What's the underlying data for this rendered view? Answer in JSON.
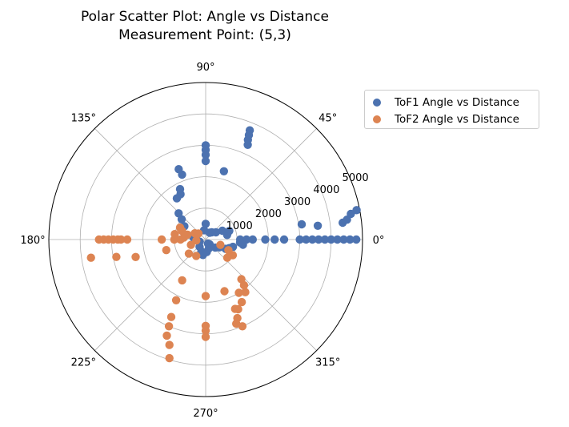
{
  "chart_data": {
    "type": "scatter",
    "projection": "polar",
    "title": "Polar Scatter Plot: Angle vs Distance",
    "subtitle": "Measurement Point: (5,3)",
    "r_ticks": [
      1000,
      2000,
      3000,
      4000,
      5000
    ],
    "r_tick_labels": [
      "1000",
      "2000",
      "3000",
      "4000",
      "5000"
    ],
    "r_max": 5000,
    "theta_ticks": [
      0,
      45,
      90,
      135,
      180,
      225,
      270,
      315
    ],
    "theta_tick_labels": [
      "0°",
      "45°",
      "90°",
      "135°",
      "180°",
      "225°",
      "270°",
      "315°"
    ],
    "theta_unit": "degrees",
    "grid": true,
    "legend_position": "outside-right",
    "series": [
      {
        "name": "ToF1 Angle vs Distance",
        "color": "#4c72b0",
        "points": [
          [
            0,
            1900
          ],
          [
            0,
            2200
          ],
          [
            0,
            2500
          ],
          [
            0,
            3000
          ],
          [
            0,
            3200
          ],
          [
            0,
            3400
          ],
          [
            0,
            3600
          ],
          [
            0,
            3800
          ],
          [
            0,
            4000
          ],
          [
            0,
            4200
          ],
          [
            0,
            4400
          ],
          [
            0,
            4600
          ],
          [
            0,
            4800
          ],
          [
            0,
            1100
          ],
          [
            0,
            1300
          ],
          [
            0,
            1500
          ],
          [
            7,
            4400
          ],
          [
            8,
            4550
          ],
          [
            10,
            4700
          ],
          [
            11,
            4900
          ],
          [
            9,
            3100
          ],
          [
            7,
            3600
          ],
          [
            -5,
            1100
          ],
          [
            -8,
            1200
          ],
          [
            -15,
            900
          ],
          [
            -20,
            800
          ],
          [
            -25,
            700
          ],
          [
            -30,
            500
          ],
          [
            -40,
            400
          ],
          [
            12,
            700
          ],
          [
            20,
            800
          ],
          [
            28,
            600
          ],
          [
            35,
            400
          ],
          [
            50,
            300
          ],
          [
            66,
            3300
          ],
          [
            67,
            3450
          ],
          [
            67.5,
            3600
          ],
          [
            68,
            3750
          ],
          [
            75,
            2250
          ],
          [
            90,
            2500
          ],
          [
            90,
            2700
          ],
          [
            90,
            2850
          ],
          [
            90,
            3000
          ],
          [
            110,
            2200
          ],
          [
            111,
            2400
          ],
          [
            117,
            1800
          ],
          [
            119,
            1650
          ],
          [
            125,
            1600
          ],
          [
            136,
            1200
          ],
          [
            140,
            1000
          ],
          [
            148,
            800
          ],
          [
            170,
            400
          ],
          [
            200,
            200
          ],
          [
            230,
            300
          ],
          [
            250,
            400
          ],
          [
            260,
            500
          ],
          [
            275,
            400
          ],
          [
            290,
            300
          ],
          [
            310,
            200
          ],
          [
            90,
            500
          ],
          [
            100,
            300
          ],
          [
            60,
            250
          ],
          [
            300,
            150
          ]
        ]
      },
      {
        "name": "ToF2 Angle vs Distance",
        "color": "#dd8452",
        "points": [
          [
            180,
            3400
          ],
          [
            180,
            3250
          ],
          [
            180,
            3100
          ],
          [
            180,
            2950
          ],
          [
            180,
            2800
          ],
          [
            180,
            2700
          ],
          [
            180,
            2500
          ],
          [
            180,
            1400
          ],
          [
            180,
            1000
          ],
          [
            180,
            800
          ],
          [
            189,
            3700
          ],
          [
            191,
            2900
          ],
          [
            194,
            2300
          ],
          [
            195,
            1300
          ],
          [
            186,
            300
          ],
          [
            200,
            500
          ],
          [
            220,
            700
          ],
          [
            240,
            600
          ],
          [
            240,
            1500
          ],
          [
            244,
            2150
          ],
          [
            246,
            2700
          ],
          [
            247,
            3000
          ],
          [
            248,
            3300
          ],
          [
            251,
            3550
          ],
          [
            253,
            3950
          ],
          [
            270,
            1800
          ],
          [
            270,
            2750
          ],
          [
            270,
            2900
          ],
          [
            270,
            3100
          ],
          [
            290,
            1750
          ],
          [
            293,
            2400
          ],
          [
            292,
            2700
          ],
          [
            290,
            2850
          ],
          [
            293,
            3000
          ],
          [
            312,
            1700
          ],
          [
            310,
            1900
          ],
          [
            307,
            2100
          ],
          [
            302,
            2000
          ],
          [
            295,
            2450
          ],
          [
            300,
            2300
          ],
          [
            330,
            1000
          ],
          [
            335,
            800
          ],
          [
            320,
            900
          ],
          [
            340,
            500
          ],
          [
            165,
            600
          ],
          [
            160,
            800
          ],
          [
            155,
            900
          ],
          [
            170,
            1000
          ],
          [
            175,
            700
          ],
          [
            150,
            400
          ],
          [
            140,
            300
          ]
        ]
      }
    ]
  }
}
